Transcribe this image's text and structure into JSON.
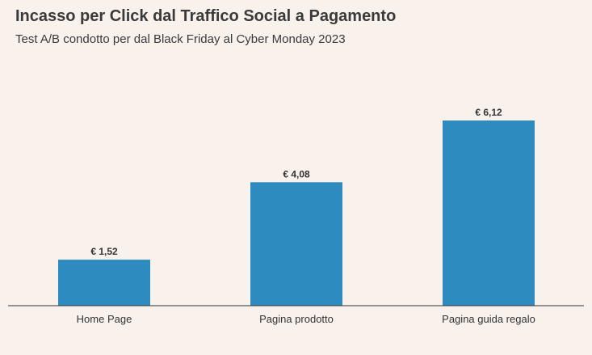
{
  "chart_data": {
    "type": "bar",
    "title": "Incasso per Click dal Traffico Social a Pagamento",
    "subtitle": "Test A/B condotto per dal Black Friday al Cyber Monday 2023",
    "categories": [
      "Home Page",
      "Pagina prodotto",
      "Pagina guida regalo"
    ],
    "values": [
      1.52,
      4.08,
      6.12
    ],
    "data_labels": [
      "€ 1,52",
      "€ 4,08",
      "€ 6,12"
    ],
    "xlabel": "",
    "ylabel": "",
    "ylim": [
      0,
      6.12
    ],
    "grid": false,
    "legend": "none",
    "bar_color": "#2e8bc0",
    "background_color": "#f9f1ec"
  }
}
